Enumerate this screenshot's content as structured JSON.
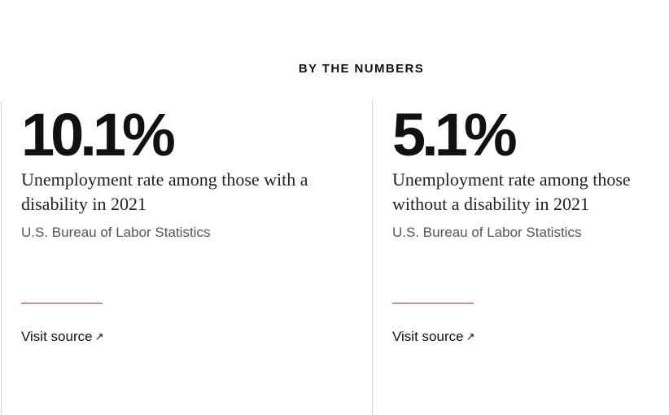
{
  "section": {
    "title": "BY THE NUMBERS"
  },
  "cards": [
    {
      "stat": "10.1%",
      "description": "Unemployment rate among those with a disability in 2021",
      "source": "U.S. Bureau of Labor Statistics",
      "link_label": "Visit source",
      "link_icon": "↗"
    },
    {
      "stat": "5.1%",
      "description": "Unemployment rate among those without a disability in 2021",
      "source": "U.S. Bureau of Labor Statistics",
      "link_label": "Visit source",
      "link_icon": "↗"
    }
  ],
  "colors": {
    "accent": "#c8342c",
    "text": "#111111",
    "muted": "#555555",
    "border": "#d6d6d6"
  }
}
